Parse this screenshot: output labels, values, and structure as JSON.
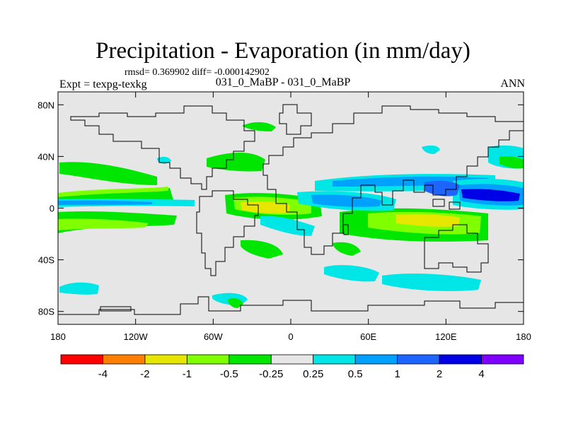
{
  "title": "Precipitation - Evaporation (in mm/day)",
  "stats": "rmsd= 0.369902 diff= -0.000142902",
  "expt": "Expt = texpg-texkg",
  "expt_name": "031_0_MaBP - 031_0_MaBP",
  "season": "ANN",
  "map": {
    "lon_ticks": [
      "180",
      "120W",
      "60W",
      "0",
      "60E",
      "120E",
      "180"
    ],
    "lat_ticks": [
      "80N",
      "40N",
      "0",
      "40S",
      "80S"
    ],
    "lat_values": [
      80,
      40,
      0,
      -40,
      -80
    ],
    "lon_range": [
      -180,
      180
    ],
    "lat_range": [
      -90,
      90
    ],
    "background_color": "#e6e6e6",
    "coastline_color": "#000000"
  },
  "colorbar": {
    "labels": [
      "-4",
      "-2",
      "-1",
      "-0.5",
      "-0.25",
      "0.25",
      "0.5",
      "1",
      "2",
      "4"
    ],
    "colors": [
      "#ff0000",
      "#ff8000",
      "#e6e600",
      "#80ff00",
      "#00e600",
      "#e6e6e6",
      "#00e6e6",
      "#00a0ff",
      "#1e64ff",
      "#0000e6",
      "#8000ff"
    ]
  }
}
